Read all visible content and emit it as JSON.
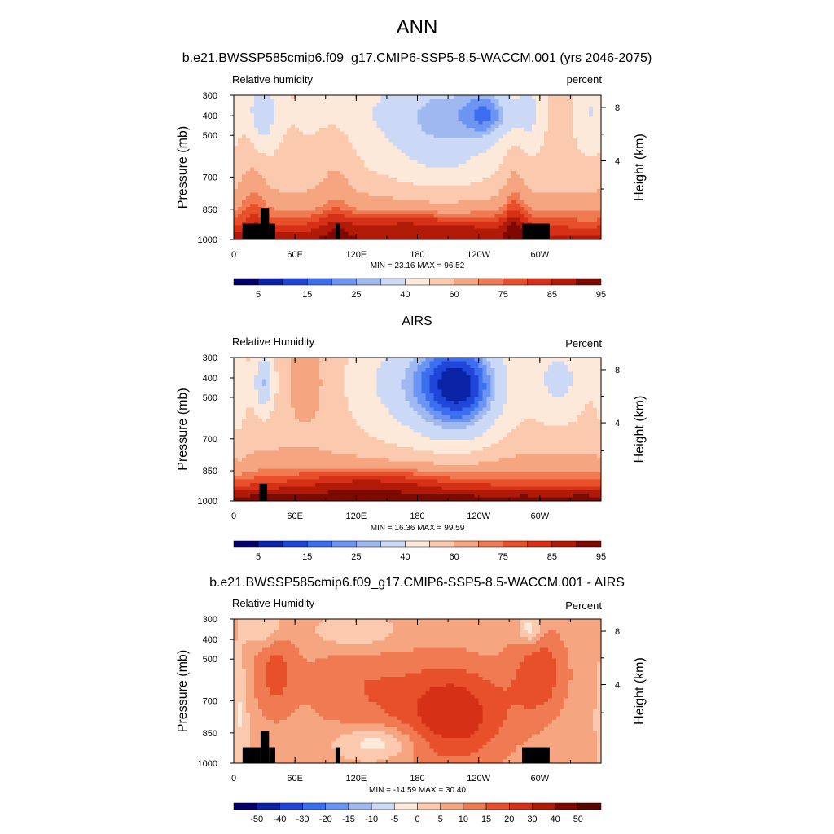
{
  "title": "ANN",
  "chart_data": [
    {
      "type": "heatmap",
      "title": "b.e21.BWSSP585cmip6.f09_g17.CMIP6-SSP5-8.5-WACCM.001 (yrs 2046-2075)",
      "variable_label": "Relative humidity",
      "units_label": "percent",
      "ylabel": "Pressure (mb)",
      "y2label": "Height (km)",
      "yticks": [
        "300",
        "400",
        "500",
        "700",
        "850",
        "1000"
      ],
      "y2ticks": [
        "8",
        "4"
      ],
      "xticks": [
        "0",
        "60E",
        "120E",
        "180",
        "120W",
        "60W"
      ],
      "stats": "MIN =  23.16  MAX =  96.52",
      "min": 23.16,
      "max": 96.52,
      "colorbar_labels": [
        "5",
        "15",
        "25",
        "40",
        "60",
        "75",
        "85",
        "95"
      ],
      "colors": [
        "#03006e",
        "#0a23a7",
        "#1f46d8",
        "#3c6ff0",
        "#6c94f2",
        "#9fb8f0",
        "#cbd9f6",
        "#fde9da",
        "#fbcaae",
        "#f6a581",
        "#f07a52",
        "#e84f2b",
        "#d63116",
        "#b01a07",
        "#7d0900"
      ]
    },
    {
      "type": "heatmap",
      "title": "AIRS",
      "variable_label": "Relative Humidity",
      "units_label": "Percent",
      "ylabel": "Pressure (mb)",
      "y2label": "Height (km)",
      "yticks": [
        "300",
        "400",
        "500",
        "700",
        "850",
        "1000"
      ],
      "y2ticks": [
        "8",
        "4"
      ],
      "xticks": [
        "0",
        "60E",
        "120E",
        "180",
        "120W",
        "60W"
      ],
      "stats": "MIN =  16.36  MAX =  99.59",
      "min": 16.36,
      "max": 99.59,
      "colorbar_labels": [
        "5",
        "15",
        "25",
        "40",
        "60",
        "75",
        "85",
        "95"
      ],
      "colors": [
        "#03006e",
        "#0a23a7",
        "#1f46d8",
        "#3c6ff0",
        "#6c94f2",
        "#9fb8f0",
        "#cbd9f6",
        "#fde9da",
        "#fbcaae",
        "#f6a581",
        "#f07a52",
        "#e84f2b",
        "#d63116",
        "#b01a07",
        "#7d0900"
      ]
    },
    {
      "type": "heatmap",
      "title": "b.e21.BWSSP585cmip6.f09_g17.CMIP6-SSP5-8.5-WACCM.001 - AIRS",
      "variable_label": "Relative Humidity",
      "units_label": "Percent",
      "ylabel": "Pressure (mb)",
      "y2label": "Height (km)",
      "yticks": [
        "300",
        "400",
        "500",
        "700",
        "850",
        "1000"
      ],
      "y2ticks": [
        "8",
        "4"
      ],
      "xticks": [
        "0",
        "60E",
        "120E",
        "180",
        "120W",
        "60W"
      ],
      "stats": "MIN = -14.59  MAX =  30.40",
      "min": -14.59,
      "max": 30.4,
      "colorbar_labels": [
        "-50",
        "-40",
        "-30",
        "-20",
        "-15",
        "-10",
        "-5",
        "0",
        "5",
        "10",
        "15",
        "20",
        "30",
        "40",
        "50"
      ],
      "colors": [
        "#03006e",
        "#0a23a7",
        "#1f46d8",
        "#3c6ff0",
        "#6c94f2",
        "#9fb8f0",
        "#cbd9f6",
        "#fde9da",
        "#fbcaae",
        "#f6a581",
        "#f07a52",
        "#e84f2b",
        "#d63116",
        "#b01a07",
        "#7d0900",
        "#5a0500"
      ]
    }
  ]
}
